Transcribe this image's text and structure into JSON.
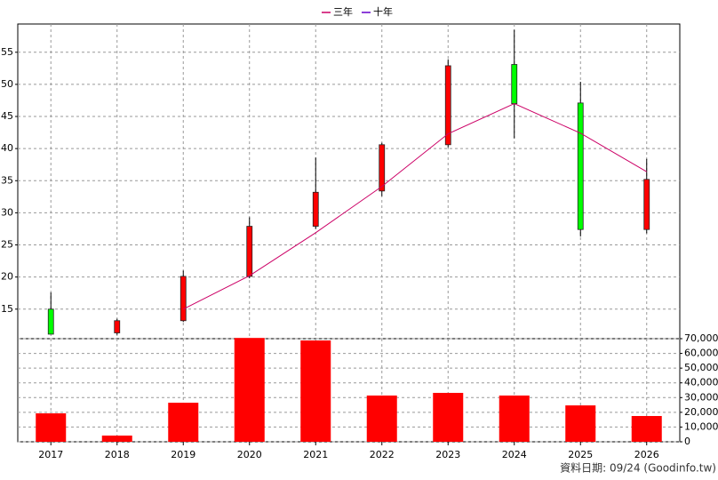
{
  "chart_data": [
    {
      "type": "candlestick",
      "categories": [
        "2017",
        "2018",
        "2019",
        "2020",
        "2021",
        "2022",
        "2023",
        "2024",
        "2025",
        "2026"
      ],
      "open": [
        15.0,
        11.3,
        13.2,
        20.1,
        27.9,
        33.4,
        40.6,
        53.1,
        47.1,
        27.4
      ],
      "high": [
        17.6,
        13.5,
        21.0,
        29.3,
        38.6,
        40.9,
        53.9,
        58.5,
        50.4,
        38.4
      ],
      "low": [
        11.1,
        11.0,
        13.0,
        19.8,
        27.5,
        32.6,
        40.2,
        41.6,
        26.3,
        26.8
      ],
      "close": [
        11.1,
        13.2,
        20.1,
        27.9,
        33.2,
        40.6,
        52.9,
        47.0,
        27.4,
        35.2
      ],
      "up_color": "#ff0000",
      "down_color": "#00ff00",
      "series": [
        {
          "name": "三年",
          "color": "#cc0066",
          "values": [
            null,
            null,
            15.0,
            20.2,
            26.9,
            34.1,
            42.3,
            47.0,
            42.4,
            36.4
          ]
        },
        {
          "name": "十年",
          "color": "#6600cc",
          "values": [
            null,
            null,
            null,
            null,
            null,
            null,
            null,
            null,
            null,
            null
          ]
        }
      ],
      "ylim": [
        10.4,
        59.4
      ],
      "yticks": [
        15,
        20,
        25,
        30,
        35,
        40,
        45,
        50,
        55
      ],
      "grid": true
    },
    {
      "type": "bar",
      "categories": [
        "2017",
        "2018",
        "2019",
        "2020",
        "2021",
        "2022",
        "2023",
        "2024",
        "2025",
        "2026"
      ],
      "values": [
        19300,
        4200,
        26500,
        70500,
        68800,
        31400,
        33200,
        31400,
        24700,
        17500
      ],
      "color": "#ff0000",
      "ylim": [
        0,
        70000
      ],
      "yticks": [
        0,
        {
          "value": 10000,
          "label": "10,000"
        },
        {
          "value": 20000,
          "label": "20,000"
        },
        {
          "value": 30000,
          "label": "30,000"
        },
        {
          "value": 40000,
          "label": "40,000"
        },
        {
          "value": 50000,
          "label": "50,000"
        },
        {
          "value": 60000,
          "label": "60,000"
        },
        {
          "value": 70000,
          "label": "70,000"
        }
      ],
      "grid": true,
      "source": "資料日期: 09/24 (Goodinfo.tw)"
    }
  ]
}
